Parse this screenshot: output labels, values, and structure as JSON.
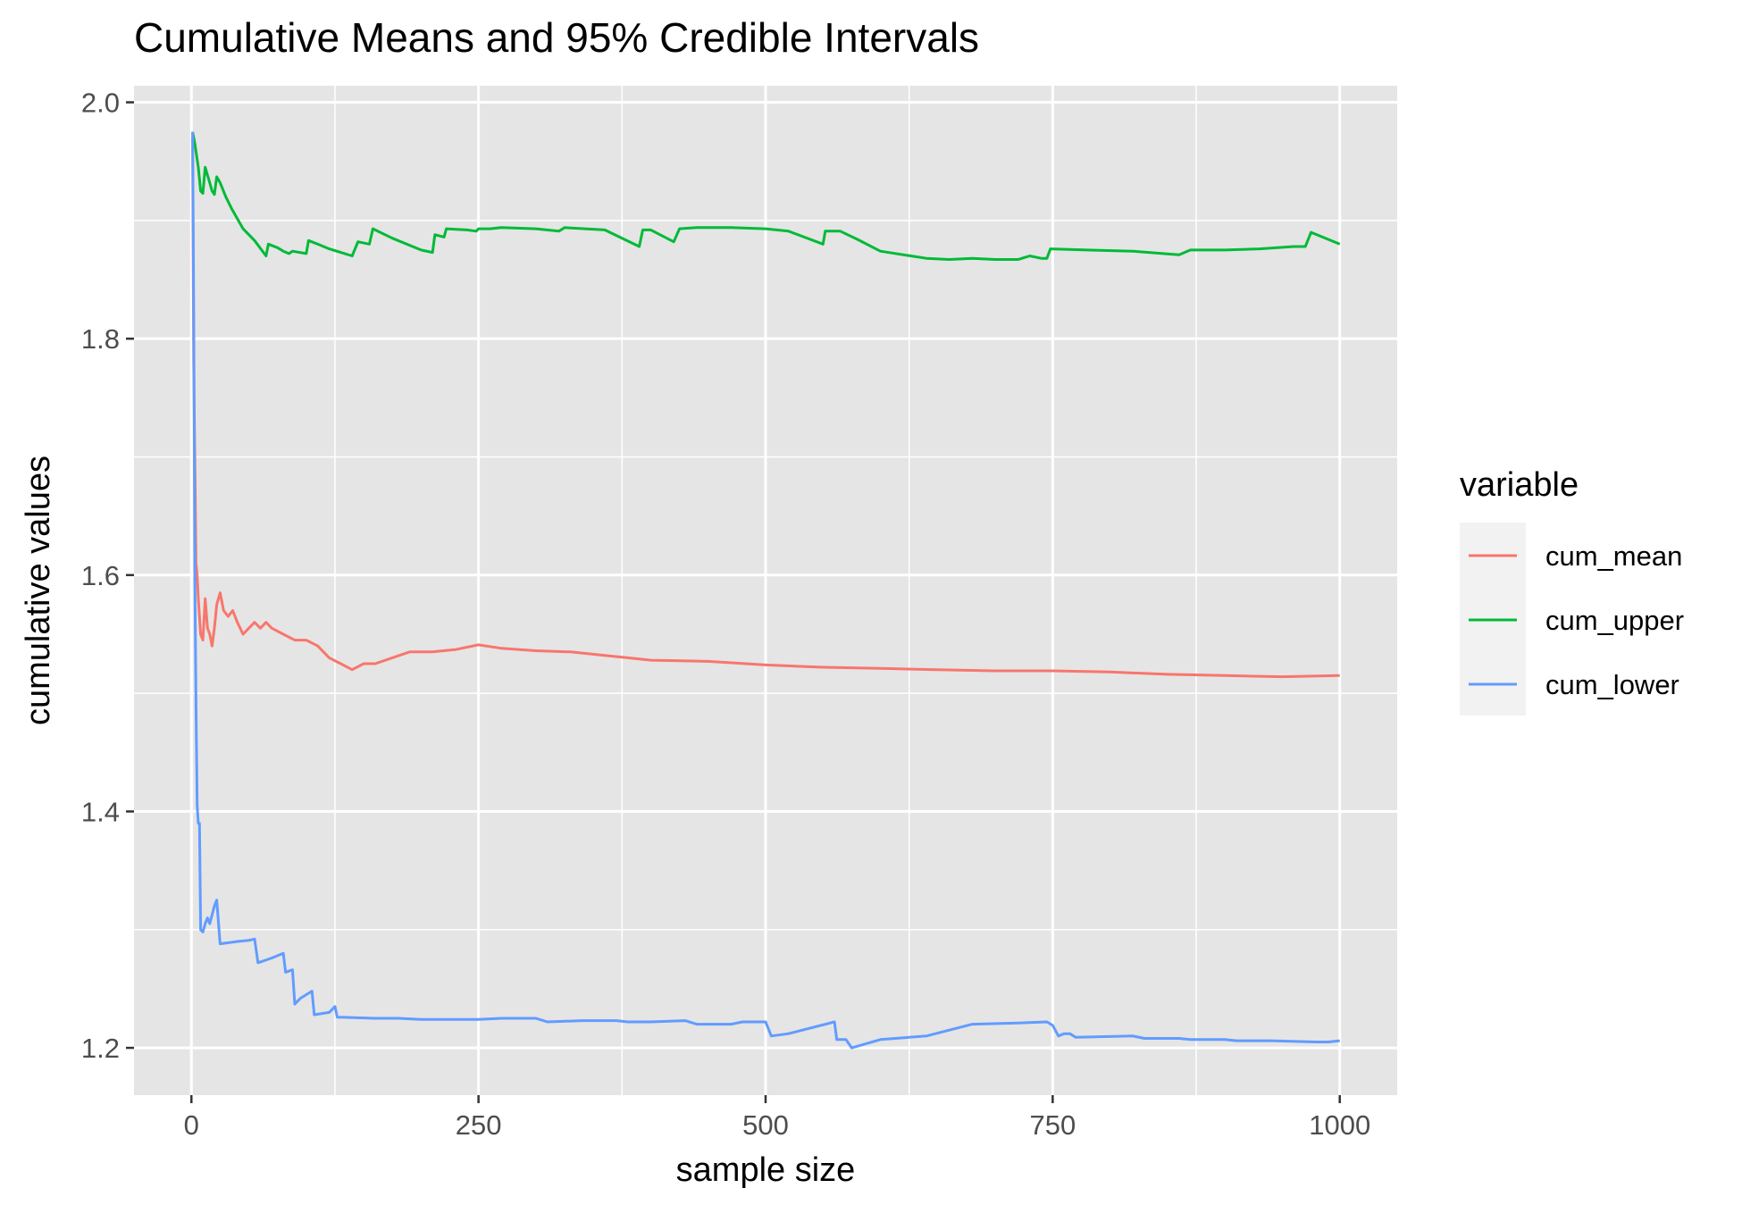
{
  "chart_data": {
    "type": "line",
    "title": "Cumulative Means and 95% Credible Intervals",
    "xlabel": "sample size",
    "ylabel": "cumulative values",
    "xlim": [
      -50,
      1050
    ],
    "ylim": [
      1.16,
      2.014
    ],
    "x_ticks": [
      0,
      250,
      500,
      750,
      1000
    ],
    "x_tick_labels": [
      "0",
      "250",
      "500",
      "750",
      "1000"
    ],
    "y_ticks": [
      1.2,
      1.4,
      1.6,
      1.8,
      2.0
    ],
    "y_tick_labels": [
      "1.2",
      "1.4",
      "1.6",
      "1.8",
      "2.0"
    ],
    "grid": true,
    "panel_background": "#E5E5E5",
    "legend": {
      "title": "variable",
      "position": "right"
    },
    "series": [
      {
        "name": "cum_mean",
        "color": "#F8766D",
        "points": [
          [
            1,
            1.97
          ],
          [
            2,
            1.78
          ],
          [
            3,
            1.7
          ],
          [
            4,
            1.61
          ],
          [
            5,
            1.6
          ],
          [
            6,
            1.58
          ],
          [
            8,
            1.55
          ],
          [
            10,
            1.545
          ],
          [
            12,
            1.58
          ],
          [
            14,
            1.555
          ],
          [
            16,
            1.55
          ],
          [
            18,
            1.54
          ],
          [
            20,
            1.555
          ],
          [
            22,
            1.575
          ],
          [
            25,
            1.585
          ],
          [
            28,
            1.57
          ],
          [
            32,
            1.565
          ],
          [
            36,
            1.57
          ],
          [
            40,
            1.56
          ],
          [
            45,
            1.55
          ],
          [
            50,
            1.555
          ],
          [
            55,
            1.56
          ],
          [
            60,
            1.555
          ],
          [
            65,
            1.56
          ],
          [
            70,
            1.555
          ],
          [
            80,
            1.55
          ],
          [
            90,
            1.545
          ],
          [
            100,
            1.545
          ],
          [
            110,
            1.54
          ],
          [
            120,
            1.53
          ],
          [
            130,
            1.525
          ],
          [
            140,
            1.52
          ],
          [
            150,
            1.525
          ],
          [
            160,
            1.525
          ],
          [
            175,
            1.53
          ],
          [
            190,
            1.535
          ],
          [
            210,
            1.535
          ],
          [
            230,
            1.537
          ],
          [
            250,
            1.541
          ],
          [
            270,
            1.538
          ],
          [
            300,
            1.536
          ],
          [
            330,
            1.535
          ],
          [
            360,
            1.532
          ],
          [
            380,
            1.53
          ],
          [
            400,
            1.528
          ],
          [
            450,
            1.527
          ],
          [
            500,
            1.524
          ],
          [
            550,
            1.522
          ],
          [
            600,
            1.521
          ],
          [
            650,
            1.52
          ],
          [
            700,
            1.519
          ],
          [
            750,
            1.519
          ],
          [
            800,
            1.518
          ],
          [
            850,
            1.516
          ],
          [
            900,
            1.515
          ],
          [
            950,
            1.514
          ],
          [
            1000,
            1.515
          ]
        ]
      },
      {
        "name": "cum_upper",
        "color": "#00BA38",
        "points": [
          [
            1,
            1.975
          ],
          [
            3,
            1.965
          ],
          [
            6,
            1.945
          ],
          [
            8,
            1.925
          ],
          [
            10,
            1.923
          ],
          [
            12,
            1.945
          ],
          [
            15,
            1.935
          ],
          [
            18,
            1.925
          ],
          [
            20,
            1.922
          ],
          [
            22,
            1.937
          ],
          [
            25,
            1.932
          ],
          [
            30,
            1.92
          ],
          [
            35,
            1.91
          ],
          [
            45,
            1.893
          ],
          [
            55,
            1.883
          ],
          [
            65,
            1.87
          ],
          [
            67,
            1.88
          ],
          [
            75,
            1.877
          ],
          [
            80,
            1.874
          ],
          [
            85,
            1.872
          ],
          [
            88,
            1.874
          ],
          [
            100,
            1.872
          ],
          [
            102,
            1.883
          ],
          [
            110,
            1.88
          ],
          [
            120,
            1.876
          ],
          [
            140,
            1.87
          ],
          [
            145,
            1.882
          ],
          [
            155,
            1.88
          ],
          [
            158,
            1.893
          ],
          [
            175,
            1.885
          ],
          [
            200,
            1.875
          ],
          [
            210,
            1.873
          ],
          [
            212,
            1.888
          ],
          [
            220,
            1.886
          ],
          [
            222,
            1.893
          ],
          [
            240,
            1.892
          ],
          [
            248,
            1.891
          ],
          [
            250,
            1.893
          ],
          [
            260,
            1.893
          ],
          [
            270,
            1.894
          ],
          [
            300,
            1.893
          ],
          [
            320,
            1.891
          ],
          [
            325,
            1.894
          ],
          [
            360,
            1.892
          ],
          [
            390,
            1.878
          ],
          [
            393,
            1.892
          ],
          [
            400,
            1.892
          ],
          [
            420,
            1.882
          ],
          [
            425,
            1.893
          ],
          [
            440,
            1.894
          ],
          [
            470,
            1.894
          ],
          [
            500,
            1.893
          ],
          [
            520,
            1.891
          ],
          [
            550,
            1.88
          ],
          [
            552,
            1.891
          ],
          [
            565,
            1.891
          ],
          [
            580,
            1.884
          ],
          [
            600,
            1.874
          ],
          [
            640,
            1.868
          ],
          [
            660,
            1.867
          ],
          [
            680,
            1.868
          ],
          [
            700,
            1.867
          ],
          [
            720,
            1.867
          ],
          [
            730,
            1.87
          ],
          [
            740,
            1.868
          ],
          [
            745,
            1.868
          ],
          [
            748,
            1.876
          ],
          [
            780,
            1.875
          ],
          [
            820,
            1.874
          ],
          [
            860,
            1.871
          ],
          [
            870,
            1.875
          ],
          [
            900,
            1.875
          ],
          [
            930,
            1.876
          ],
          [
            960,
            1.878
          ],
          [
            970,
            1.878
          ],
          [
            975,
            1.89
          ],
          [
            1000,
            1.88
          ]
        ]
      },
      {
        "name": "cum_lower",
        "color": "#619CFF",
        "points": [
          [
            1,
            1.975
          ],
          [
            2,
            1.83
          ],
          [
            3,
            1.6
          ],
          [
            4,
            1.49
          ],
          [
            5,
            1.405
          ],
          [
            6,
            1.39
          ],
          [
            7,
            1.39
          ],
          [
            8,
            1.3
          ],
          [
            10,
            1.298
          ],
          [
            12,
            1.305
          ],
          [
            14,
            1.31
          ],
          [
            16,
            1.305
          ],
          [
            20,
            1.32
          ],
          [
            22,
            1.325
          ],
          [
            25,
            1.288
          ],
          [
            40,
            1.29
          ],
          [
            50,
            1.291
          ],
          [
            55,
            1.292
          ],
          [
            58,
            1.272
          ],
          [
            70,
            1.276
          ],
          [
            80,
            1.28
          ],
          [
            82,
            1.264
          ],
          [
            88,
            1.266
          ],
          [
            90,
            1.237
          ],
          [
            95,
            1.242
          ],
          [
            105,
            1.248
          ],
          [
            107,
            1.228
          ],
          [
            120,
            1.23
          ],
          [
            125,
            1.235
          ],
          [
            127,
            1.226
          ],
          [
            160,
            1.225
          ],
          [
            180,
            1.225
          ],
          [
            200,
            1.224
          ],
          [
            220,
            1.224
          ],
          [
            250,
            1.224
          ],
          [
            270,
            1.225
          ],
          [
            300,
            1.225
          ],
          [
            310,
            1.222
          ],
          [
            340,
            1.223
          ],
          [
            370,
            1.223
          ],
          [
            380,
            1.222
          ],
          [
            400,
            1.222
          ],
          [
            430,
            1.223
          ],
          [
            440,
            1.22
          ],
          [
            470,
            1.22
          ],
          [
            480,
            1.222
          ],
          [
            500,
            1.222
          ],
          [
            505,
            1.21
          ],
          [
            520,
            1.212
          ],
          [
            560,
            1.222
          ],
          [
            562,
            1.207
          ],
          [
            570,
            1.207
          ],
          [
            575,
            1.2
          ],
          [
            600,
            1.207
          ],
          [
            640,
            1.21
          ],
          [
            680,
            1.22
          ],
          [
            720,
            1.221
          ],
          [
            745,
            1.222
          ],
          [
            750,
            1.219
          ],
          [
            755,
            1.21
          ],
          [
            760,
            1.212
          ],
          [
            765,
            1.212
          ],
          [
            770,
            1.209
          ],
          [
            820,
            1.21
          ],
          [
            830,
            1.208
          ],
          [
            860,
            1.208
          ],
          [
            870,
            1.207
          ],
          [
            900,
            1.207
          ],
          [
            910,
            1.206
          ],
          [
            920,
            1.206
          ],
          [
            940,
            1.206
          ],
          [
            980,
            1.205
          ],
          [
            990,
            1.205
          ],
          [
            1000,
            1.206
          ]
        ]
      }
    ]
  }
}
